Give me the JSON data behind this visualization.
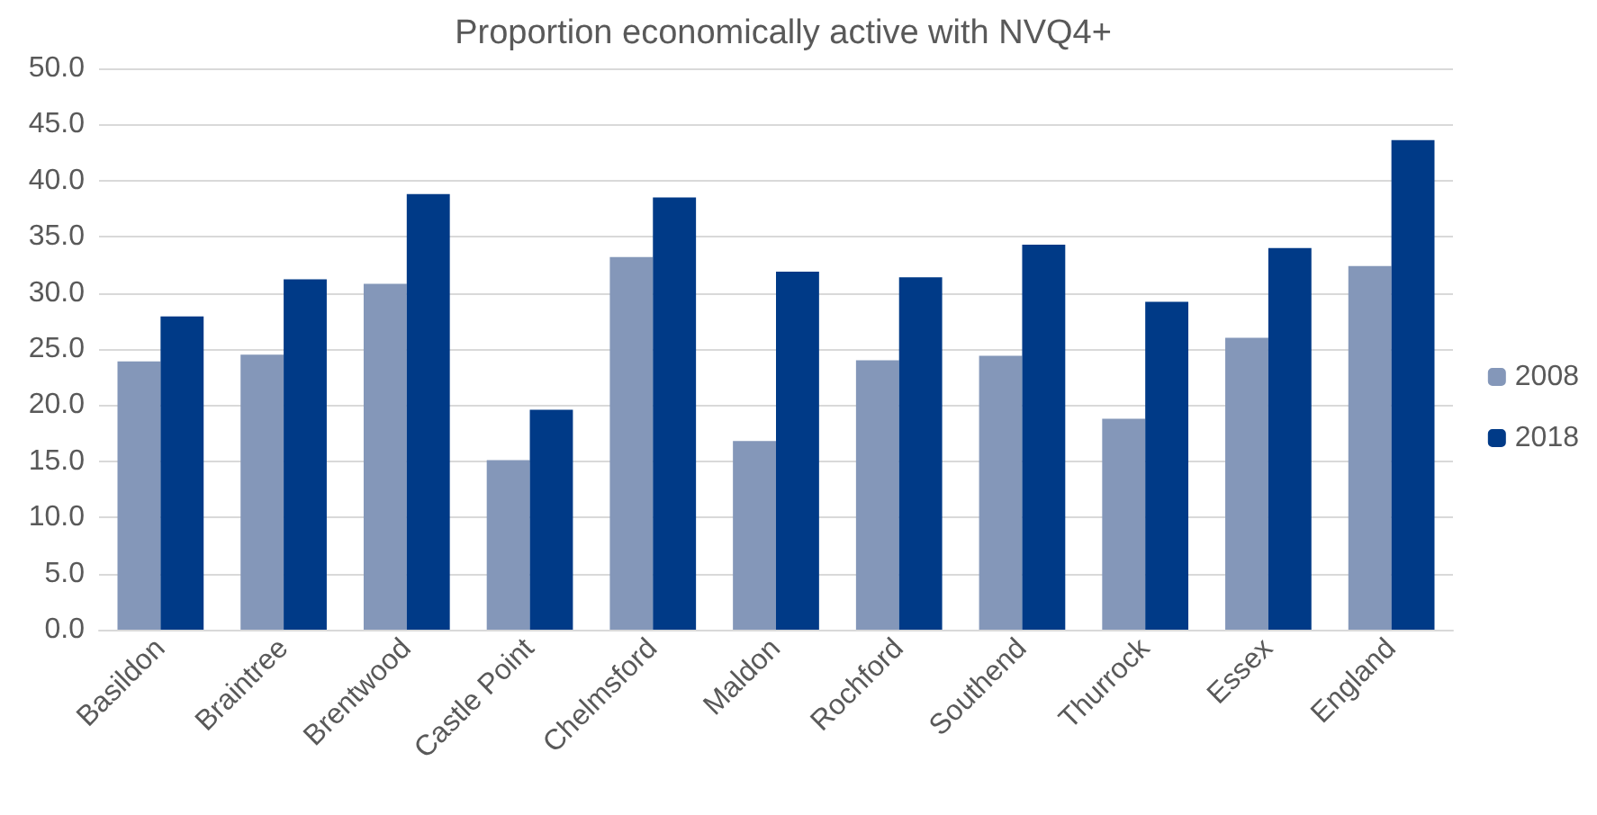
{
  "chart_data": {
    "type": "bar",
    "title": "Proportion economically active with NVQ4+",
    "categories": [
      "Basildon",
      "Braintree",
      "Brentwood",
      "Castle Point",
      "Chelmsford",
      "Maldon",
      "Rochford",
      "Southend",
      "Thurrock",
      "Essex",
      "England"
    ],
    "series": [
      {
        "name": "2008",
        "color": "#8497b9",
        "values": [
          23.9,
          24.5,
          30.8,
          15.1,
          33.2,
          16.8,
          24.0,
          24.4,
          18.8,
          26.0,
          32.4
        ]
      },
      {
        "name": "2018",
        "color": "#003a87",
        "values": [
          27.9,
          31.2,
          38.8,
          19.6,
          38.5,
          31.9,
          31.4,
          34.3,
          29.2,
          34.0,
          43.6
        ]
      }
    ],
    "ylim": [
      0,
      50
    ],
    "yticks": [
      {
        "value": 0,
        "label": "0.0"
      },
      {
        "value": 5,
        "label": "5.0"
      },
      {
        "value": 10,
        "label": "10.0"
      },
      {
        "value": 15,
        "label": "15.0"
      },
      {
        "value": 20,
        "label": "20.0"
      },
      {
        "value": 25,
        "label": "25.0"
      },
      {
        "value": 30,
        "label": "30.0"
      },
      {
        "value": 35,
        "label": "35.0"
      },
      {
        "value": 40,
        "label": "40.0"
      },
      {
        "value": 45,
        "label": "45.0"
      },
      {
        "value": 50,
        "label": "50.0"
      }
    ],
    "grid": "y",
    "legend": "right"
  }
}
